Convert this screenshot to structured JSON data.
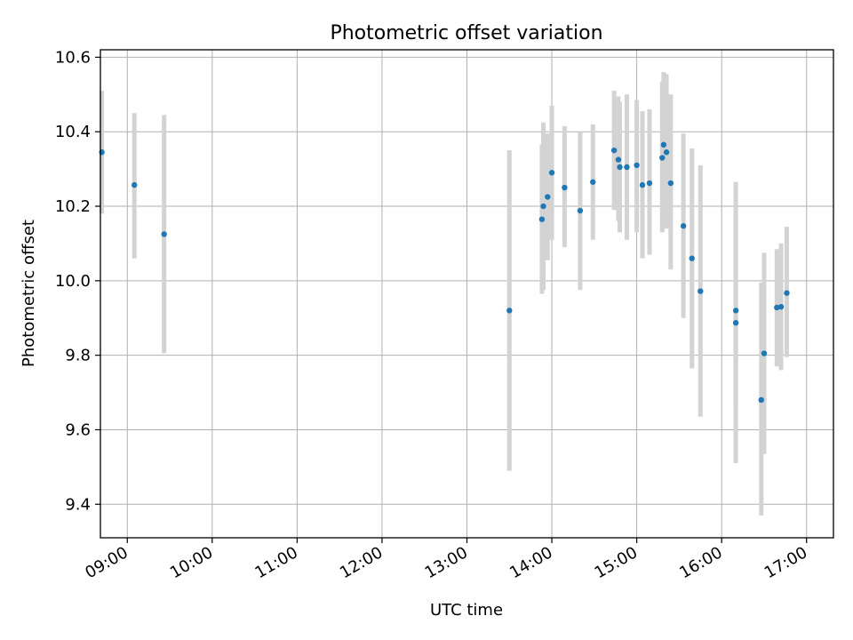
{
  "chart_data": {
    "type": "scatter",
    "title": "Photometric offset variation",
    "xlabel": "UTC time",
    "ylabel": "Photometric offset",
    "xlim": [
      "08:41",
      "17:19"
    ],
    "ylim": [
      9.31,
      10.62
    ],
    "x_ticks": [
      "09:00",
      "10:00",
      "11:00",
      "12:00",
      "13:00",
      "14:00",
      "15:00",
      "16:00",
      "17:00"
    ],
    "y_ticks": [
      "9.4",
      "9.6",
      "9.8",
      "10.0",
      "10.2",
      "10.4",
      "10.6"
    ],
    "grid": true,
    "point_color": "#1f77b4",
    "errorbar_color": "#d3d3d3",
    "points": [
      {
        "time": "08:42",
        "y": 10.345,
        "lo": 10.18,
        "hi": 10.51
      },
      {
        "time": "09:05",
        "y": 10.257,
        "lo": 10.06,
        "hi": 10.45
      },
      {
        "time": "09:26",
        "y": 10.125,
        "lo": 9.805,
        "hi": 10.445
      },
      {
        "time": "13:30",
        "y": 9.92,
        "lo": 9.49,
        "hi": 10.35
      },
      {
        "time": "13:53",
        "y": 10.165,
        "lo": 9.965,
        "hi": 10.365
      },
      {
        "time": "13:54",
        "y": 10.2,
        "lo": 9.975,
        "hi": 10.425
      },
      {
        "time": "13:57",
        "y": 10.225,
        "lo": 10.055,
        "hi": 10.395
      },
      {
        "time": "14:00",
        "y": 10.29,
        "lo": 10.11,
        "hi": 10.47
      },
      {
        "time": "14:09",
        "y": 10.25,
        "lo": 10.09,
        "hi": 10.415
      },
      {
        "time": "14:20",
        "y": 10.188,
        "lo": 9.975,
        "hi": 10.4
      },
      {
        "time": "14:29",
        "y": 10.265,
        "lo": 10.11,
        "hi": 10.42
      },
      {
        "time": "14:44",
        "y": 10.35,
        "lo": 10.19,
        "hi": 10.51
      },
      {
        "time": "14:47",
        "y": 10.325,
        "lo": 10.16,
        "hi": 10.495
      },
      {
        "time": "14:48",
        "y": 10.305,
        "lo": 10.13,
        "hi": 10.48
      },
      {
        "time": "14:53",
        "y": 10.305,
        "lo": 10.11,
        "hi": 10.5
      },
      {
        "time": "15:00",
        "y": 10.31,
        "lo": 10.13,
        "hi": 10.485
      },
      {
        "time": "15:04",
        "y": 10.257,
        "lo": 10.06,
        "hi": 10.455
      },
      {
        "time": "15:09",
        "y": 10.262,
        "lo": 10.07,
        "hi": 10.46
      },
      {
        "time": "15:18",
        "y": 10.33,
        "lo": 10.13,
        "hi": 10.535
      },
      {
        "time": "15:19",
        "y": 10.365,
        "lo": 10.17,
        "hi": 10.56
      },
      {
        "time": "15:21",
        "y": 10.345,
        "lo": 10.14,
        "hi": 10.555
      },
      {
        "time": "15:24",
        "y": 10.262,
        "lo": 10.03,
        "hi": 10.5
      },
      {
        "time": "15:33",
        "y": 10.147,
        "lo": 9.9,
        "hi": 10.395
      },
      {
        "time": "15:39",
        "y": 10.06,
        "lo": 9.765,
        "hi": 10.355
      },
      {
        "time": "15:45",
        "y": 9.972,
        "lo": 9.635,
        "hi": 10.31
      },
      {
        "time": "16:10",
        "y": 9.92,
        "lo": 9.66,
        "hi": 10.18
      },
      {
        "time": "16:10",
        "y": 9.887,
        "lo": 9.51,
        "hi": 10.265
      },
      {
        "time": "16:28",
        "y": 9.68,
        "lo": 9.37,
        "hi": 9.995
      },
      {
        "time": "16:30",
        "y": 9.805,
        "lo": 9.535,
        "hi": 10.075
      },
      {
        "time": "16:39",
        "y": 9.928,
        "lo": 9.77,
        "hi": 10.085
      },
      {
        "time": "16:42",
        "y": 9.93,
        "lo": 9.76,
        "hi": 10.1
      },
      {
        "time": "16:46",
        "y": 9.967,
        "lo": 9.795,
        "hi": 10.145
      }
    ]
  }
}
